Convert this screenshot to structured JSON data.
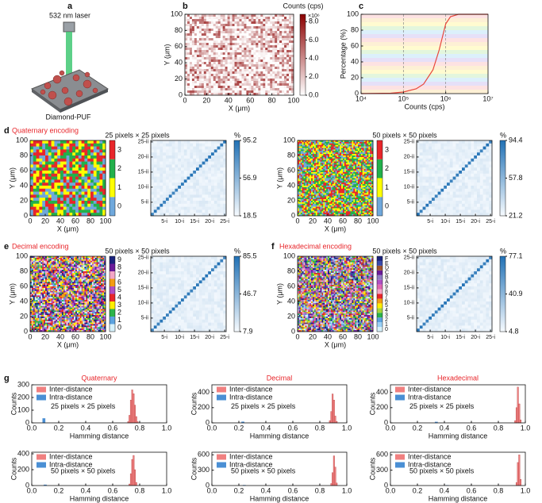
{
  "panel_a": {
    "label": "a",
    "laser": "532 nm laser",
    "sample": "Diamond-PUF"
  },
  "chart_data": [
    {
      "type": "heatmap",
      "panel": "b",
      "xlabel": "X (μm)",
      "ylabel": "Y (μm)",
      "xlim": [
        0,
        100
      ],
      "ylim": [
        0,
        100
      ],
      "xticks": [
        0,
        20,
        40,
        60,
        80,
        100
      ],
      "yticks": [
        0,
        20,
        40,
        60,
        80,
        100
      ],
      "colorbar": {
        "title": "Counts (cps)",
        "multiplier": "×10⁶",
        "lim": [
          0,
          8.8
        ],
        "colors": [
          "#ffffff",
          "#8b0000"
        ],
        "ticks": [
          {
            "value": 0,
            "label": "0.0"
          },
          {
            "value": 2,
            "label": "2.0"
          },
          {
            "value": 4,
            "label": "4.0"
          },
          {
            "value": 6,
            "label": "6.0"
          },
          {
            "value": 8,
            "label": "8.0"
          }
        ]
      }
    },
    {
      "type": "line",
      "panel": "c",
      "xlabel": "Counts (cps)",
      "ylabel": "Percentage (%)",
      "log_x": true,
      "xlim": [
        10000,
        10000000
      ],
      "ylim": [
        0,
        100
      ],
      "xticks": [
        {
          "value": 10000,
          "label": "10⁴"
        },
        {
          "value": 100000,
          "label": "10⁵"
        },
        {
          "value": 1000000,
          "label": "10⁶"
        },
        {
          "value": 10000000,
          "label": "10⁷"
        }
      ],
      "yticks": [
        0,
        20,
        40,
        60,
        80,
        100
      ],
      "vlines": [
        100000,
        1000000
      ],
      "x": [
        10000,
        50000,
        100000,
        200000,
        300000,
        500000,
        700000,
        1000000,
        1300000,
        2000000,
        10000000
      ],
      "series": [
        {
          "color": "#e8463c",
          "values": [
            0,
            0.5,
            2,
            6,
            12,
            30,
            55,
            88,
            97,
            100,
            100
          ]
        }
      ]
    },
    {
      "type": "category-map",
      "panel": "d",
      "title": "Quaternary encoding",
      "subtitle": "25 pixels × 25 pixels",
      "xlabel": "X (μm)",
      "ylabel": "Y (μm)",
      "xlim": [
        0,
        100
      ],
      "ylim": [
        0,
        100
      ],
      "xticks": [
        0,
        20,
        40,
        60,
        80,
        100
      ],
      "yticks": [
        0,
        20,
        40,
        60,
        80,
        100
      ],
      "levels": [
        "0",
        "1",
        "2",
        "3"
      ],
      "colors": [
        "#6fa8dc",
        "#ffff00",
        "#22b04b",
        "#e8262b"
      ]
    },
    {
      "type": "matrix",
      "xlim": [
        0.5,
        25.5
      ],
      "ylim": [
        0.5,
        25.5
      ],
      "xticks": [
        {
          "value": 5,
          "label": "5-i"
        },
        {
          "value": 10,
          "label": "10-i"
        },
        {
          "value": 15,
          "label": "15-i"
        },
        {
          "value": 20,
          "label": "20-i"
        },
        {
          "value": 25,
          "label": "25-i"
        }
      ],
      "yticks": [
        {
          "value": 5,
          "label": "5-ii"
        },
        {
          "value": 10,
          "label": "10-ii"
        },
        {
          "value": 15,
          "label": "15-ii"
        },
        {
          "value": 20,
          "label": "20-ii"
        },
        {
          "value": 25,
          "label": "25-ii"
        }
      ],
      "colorbar": {
        "title": "%",
        "lim": [
          18.5,
          95.2
        ],
        "ticks": [
          95.2,
          56.9,
          18.5
        ],
        "colors": [
          "#f7fbff",
          "#2171b5"
        ]
      }
    },
    {
      "type": "category-map",
      "subtitle": "50 pixels × 50 pixels",
      "xlabel": "X (μm)",
      "ylabel": "Y (μm)",
      "xlim": [
        0,
        100
      ],
      "ylim": [
        0,
        100
      ],
      "xticks": [
        0,
        20,
        40,
        60,
        80,
        100
      ],
      "yticks": [
        0,
        20,
        40,
        60,
        80,
        100
      ],
      "levels": [
        "0",
        "1",
        "2",
        "3"
      ],
      "colors": [
        "#6fa8dc",
        "#ffff00",
        "#22b04b",
        "#e8262b"
      ]
    },
    {
      "type": "matrix",
      "xlim": [
        0.5,
        25.5
      ],
      "ylim": [
        0.5,
        25.5
      ],
      "xticks": [
        {
          "value": 5,
          "label": "5-i"
        },
        {
          "value": 10,
          "label": "10-i"
        },
        {
          "value": 15,
          "label": "15-i"
        },
        {
          "value": 20,
          "label": "20-i"
        },
        {
          "value": 25,
          "label": "25-i"
        }
      ],
      "yticks": [
        {
          "value": 5,
          "label": "5-ii"
        },
        {
          "value": 10,
          "label": "10-ii"
        },
        {
          "value": 15,
          "label": "15-ii"
        },
        {
          "value": 20,
          "label": "20-ii"
        },
        {
          "value": 25,
          "label": "25-ii"
        }
      ],
      "colorbar": {
        "title": "%",
        "lim": [
          21.2,
          94.4
        ],
        "ticks": [
          94.4,
          57.8,
          21.2
        ],
        "colors": [
          "#f7fbff",
          "#2171b5"
        ]
      }
    },
    {
      "type": "category-map",
      "panel": "e",
      "title": "Decimal encoding",
      "subtitle": "50 pixels × 50 pixels",
      "xlabel": "X (μm)",
      "ylabel": "Y (μm)",
      "xlim": [
        0,
        100
      ],
      "ylim": [
        0,
        100
      ],
      "xticks": [
        0,
        20,
        40,
        60,
        80,
        100
      ],
      "yticks": [
        0,
        20,
        40,
        60,
        80,
        100
      ],
      "levels": [
        "0",
        "1",
        "2",
        "3",
        "4",
        "5",
        "6",
        "7",
        "8",
        "9"
      ],
      "colors": [
        "#d6f1fb",
        "#5ba3e0",
        "#2cb34a",
        "#ffee00",
        "#e8262b",
        "#b04fc4",
        "#f39c12",
        "#f4a6c6",
        "#6a1b9a",
        "#1a237e"
      ]
    },
    {
      "type": "matrix",
      "xlim": [
        0.5,
        25.5
      ],
      "ylim": [
        0.5,
        25.5
      ],
      "xticks": [
        {
          "value": 5,
          "label": "5-i"
        },
        {
          "value": 10,
          "label": "10-i"
        },
        {
          "value": 15,
          "label": "15-i"
        },
        {
          "value": 20,
          "label": "20-i"
        },
        {
          "value": 25,
          "label": "25-i"
        }
      ],
      "yticks": [
        {
          "value": 5,
          "label": "5-ii"
        },
        {
          "value": 10,
          "label": "10-ii"
        },
        {
          "value": 15,
          "label": "15-ii"
        },
        {
          "value": 20,
          "label": "20-ii"
        },
        {
          "value": 25,
          "label": "25-ii"
        }
      ],
      "colorbar": {
        "title": "%",
        "lim": [
          7.9,
          85.5
        ],
        "ticks": [
          85.5,
          46.7,
          7.9
        ],
        "colors": [
          "#f7fbff",
          "#2171b5"
        ]
      }
    },
    {
      "type": "category-map",
      "panel": "f",
      "title": "Hexadecimal encoding",
      "subtitle": "50 pixels × 50 pixels",
      "xlabel": "X (μm)",
      "ylabel": "Y (μm)",
      "xlim": [
        0,
        100
      ],
      "ylim": [
        0,
        100
      ],
      "xticks": [
        0,
        20,
        40,
        60,
        80,
        100
      ],
      "yticks": [
        0,
        20,
        40,
        60,
        80,
        100
      ],
      "levels": [
        "0",
        "1",
        "2",
        "3",
        "4",
        "5",
        "6",
        "7",
        "8",
        "9",
        "A",
        "B",
        "C",
        "D",
        "E",
        "F"
      ],
      "colors": [
        "#d6f1fb",
        "#9ad0f5",
        "#5ba3e0",
        "#2cb34a",
        "#a5d63a",
        "#ffee00",
        "#f39c12",
        "#e8262b",
        "#f4a6c6",
        "#e066b0",
        "#b04fc4",
        "#8e7cc3",
        "#6a1b9a",
        "#a0522d",
        "#3949ab",
        "#1a237e"
      ]
    },
    {
      "type": "matrix",
      "xlim": [
        0.5,
        25.5
      ],
      "ylim": [
        0.5,
        25.5
      ],
      "xticks": [
        {
          "value": 5,
          "label": "5-i"
        },
        {
          "value": 10,
          "label": "10-i"
        },
        {
          "value": 15,
          "label": "15-i"
        },
        {
          "value": 20,
          "label": "20-i"
        },
        {
          "value": 25,
          "label": "25-i"
        }
      ],
      "yticks": [
        {
          "value": 5,
          "label": "5-ii"
        },
        {
          "value": 10,
          "label": "10-ii"
        },
        {
          "value": 15,
          "label": "15-ii"
        },
        {
          "value": 20,
          "label": "20-ii"
        },
        {
          "value": 25,
          "label": "25-ii"
        }
      ],
      "colorbar": {
        "title": "%",
        "lim": [
          4.8,
          77.1
        ],
        "ticks": [
          77.1,
          40.9,
          4.8
        ],
        "colors": [
          "#f7fbff",
          "#2171b5"
        ]
      }
    },
    {
      "type": "histogram",
      "panel": "g",
      "title": "Quaternary",
      "annotation": "25 pixels × 25 pixels",
      "xlabel": "Hamming distance",
      "ylabel": "Counts",
      "xlim": [
        0,
        1
      ],
      "ylim": [
        0,
        300
      ],
      "xticks": [
        {
          "value": 0,
          "label": "0.0"
        },
        {
          "value": 0.2,
          "label": "0.2"
        },
        {
          "value": 0.4,
          "label": "0.4"
        },
        {
          "value": 0.6,
          "label": "0.6"
        },
        {
          "value": 0.8,
          "label": "0.8"
        },
        {
          "value": 1,
          "label": "1.0"
        }
      ],
      "yticks": [
        0,
        100,
        200,
        300
      ],
      "series": [
        {
          "name": "Inter-distance",
          "color": "#f08080",
          "bins": [
            0.71,
            0.72,
            0.73,
            0.74,
            0.75,
            0.76,
            0.77,
            0.78,
            0.79
          ],
          "values": [
            10,
            60,
            180,
            260,
            230,
            140,
            50,
            10
          ]
        },
        {
          "name": "Intra-distance",
          "color": "#4a8fd4",
          "bins": [
            0.08,
            0.1
          ],
          "values": [
            35
          ]
        }
      ]
    },
    {
      "type": "histogram",
      "title": "Decimal",
      "annotation": "25 pixels × 25 pixels",
      "xlabel": "Hamming distance",
      "ylabel": "Counts",
      "xlim": [
        0,
        1
      ],
      "ylim": [
        0,
        500
      ],
      "xticks": [
        {
          "value": 0,
          "label": "0.0"
        },
        {
          "value": 0.2,
          "label": "0.2"
        },
        {
          "value": 0.4,
          "label": "0.4"
        },
        {
          "value": 0.6,
          "label": "0.6"
        },
        {
          "value": 0.8,
          "label": "0.8"
        },
        {
          "value": 1,
          "label": "1.0"
        }
      ],
      "yticks": [
        0,
        200,
        400
      ],
      "series": [
        {
          "name": "Inter-distance",
          "color": "#f08080",
          "bins": [
            0.87,
            0.88,
            0.89,
            0.9,
            0.91,
            0.92,
            0.93
          ],
          "values": [
            30,
            150,
            380,
            300,
            90,
            20
          ]
        },
        {
          "name": "Intra-distance",
          "color": "#4a8fd4",
          "bins": [
            0.22,
            0.24
          ],
          "values": [
            15
          ]
        }
      ]
    },
    {
      "type": "histogram",
      "title": "Hexadecimal",
      "annotation": "25 pixels × 25 pixels",
      "xlabel": "Hamming distance",
      "ylabel": "Counts",
      "xlim": [
        0,
        1
      ],
      "ylim": [
        0,
        500
      ],
      "xticks": [
        {
          "value": 0,
          "label": "0.0"
        },
        {
          "value": 0.2,
          "label": "0.2"
        },
        {
          "value": 0.4,
          "label": "0.4"
        },
        {
          "value": 0.6,
          "label": "0.6"
        },
        {
          "value": 0.8,
          "label": "0.8"
        },
        {
          "value": 1,
          "label": "1.0"
        }
      ],
      "yticks": [
        0,
        200,
        400
      ],
      "series": [
        {
          "name": "Inter-distance",
          "color": "#f08080",
          "bins": [
            0.92,
            0.93,
            0.94,
            0.95,
            0.96,
            0.97
          ],
          "values": [
            30,
            200,
            470,
            250,
            40
          ]
        },
        {
          "name": "Intra-distance",
          "color": "#4a8fd4",
          "bins": [
            0.33,
            0.35
          ],
          "values": [
            12
          ]
        }
      ]
    },
    {
      "type": "histogram",
      "annotation": "50 pixels × 50 pixels",
      "xlabel": "Hamming distance",
      "ylabel": "Counts",
      "xlim": [
        0,
        1
      ],
      "ylim": [
        0,
        420
      ],
      "xticks": [
        {
          "value": 0,
          "label": "0.0"
        },
        {
          "value": 0.2,
          "label": "0.2"
        },
        {
          "value": 0.4,
          "label": "0.4"
        },
        {
          "value": 0.6,
          "label": "0.6"
        },
        {
          "value": 0.8,
          "label": "0.8"
        },
        {
          "value": 1,
          "label": "1.0"
        }
      ],
      "yticks": [
        0,
        200,
        400
      ],
      "series": [
        {
          "name": "Inter-distance",
          "color": "#f08080",
          "bins": [
            0.72,
            0.73,
            0.74,
            0.75,
            0.76,
            0.77,
            0.78
          ],
          "values": [
            20,
            150,
            330,
            380,
            200,
            40
          ]
        },
        {
          "name": "Intra-distance",
          "color": "#4a8fd4",
          "bins": [
            0.09,
            0.11
          ],
          "values": [
            10
          ]
        }
      ]
    },
    {
      "type": "histogram",
      "annotation": "50 pixels × 50 pixels",
      "xlabel": "Hamming distance",
      "ylabel": "Counts",
      "xlim": [
        0,
        1
      ],
      "ylim": [
        0,
        650
      ],
      "xticks": [
        {
          "value": 0,
          "label": "0.0"
        },
        {
          "value": 0.2,
          "label": "0.2"
        },
        {
          "value": 0.4,
          "label": "0.4"
        },
        {
          "value": 0.6,
          "label": "0.6"
        },
        {
          "value": 0.8,
          "label": "0.8"
        },
        {
          "value": 1,
          "label": "1.0"
        }
      ],
      "yticks": [
        0,
        300,
        600
      ],
      "series": [
        {
          "name": "Inter-distance",
          "color": "#f08080",
          "bins": [
            0.88,
            0.89,
            0.9,
            0.91,
            0.92,
            0.93
          ],
          "values": [
            40,
            250,
            580,
            360,
            50
          ]
        },
        {
          "name": "Intra-distance",
          "color": "#4a8fd4",
          "bins": [
            0.23,
            0.25
          ],
          "values": [
            8
          ]
        }
      ]
    },
    {
      "type": "histogram",
      "annotation": "50 pixels × 50 pixels",
      "xlabel": "Hamming distance",
      "ylabel": "Counts",
      "xlim": [
        0,
        1
      ],
      "ylim": [
        0,
        650
      ],
      "xticks": [
        {
          "value": 0,
          "label": "0.0"
        },
        {
          "value": 0.2,
          "label": "0.2"
        },
        {
          "value": 0.4,
          "label": "0.4"
        },
        {
          "value": 0.6,
          "label": "0.6"
        },
        {
          "value": 0.8,
          "label": "0.8"
        },
        {
          "value": 1,
          "label": "1.0"
        }
      ],
      "yticks": [
        0,
        300,
        600
      ],
      "series": [
        {
          "name": "Inter-distance",
          "color": "#f08080",
          "bins": [
            0.93,
            0.94,
            0.95,
            0.96,
            0.97
          ],
          "values": [
            60,
            450,
            600,
            120
          ]
        },
        {
          "name": "Intra-distance",
          "color": "#4a8fd4",
          "bins": [
            0.41,
            0.43
          ],
          "values": [
            6
          ]
        }
      ]
    }
  ]
}
